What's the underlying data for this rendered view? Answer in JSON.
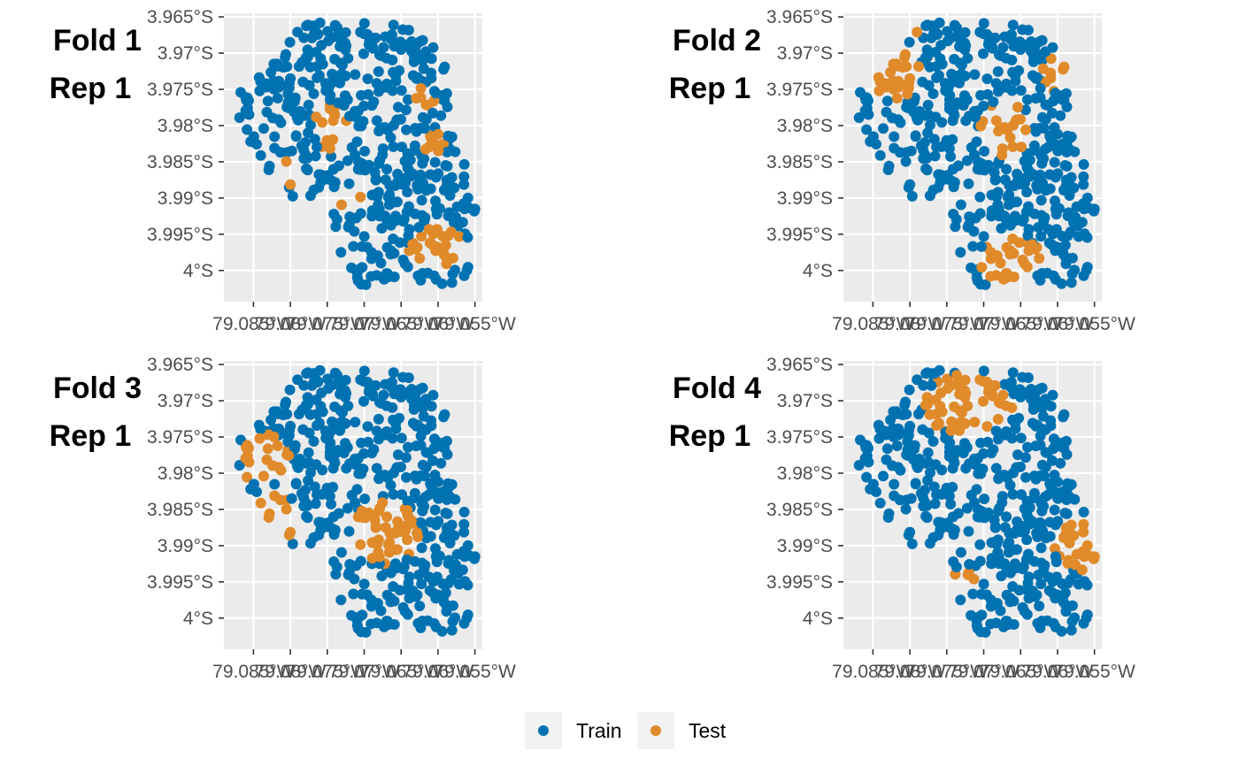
{
  "colors": {
    "panel_background": "#ebebeb",
    "grid": "#ffffff",
    "tick_text": "#4d4d4d",
    "legend_key_background": "#f2f2f2",
    "train": "#0072B2",
    "test": "#E08A2A"
  },
  "chart_data": [
    {
      "type": "scatter",
      "facet_label_line1": "Fold 1",
      "facet_label_line2": "Rep 1",
      "x_tick_labels": [
        "79.085°W",
        "79.08°W",
        "79.075°W",
        "79.07°W",
        "79.065°W",
        "79.06°W",
        "79.055°W"
      ],
      "y_tick_labels": [
        "3.965°S",
        "3.97°S",
        "3.975°S",
        "3.98°S",
        "3.985°S",
        "3.99°S",
        "3.995°S",
        "4°S"
      ],
      "x_ticks": [
        -79.085,
        -79.08,
        -79.075,
        -79.07,
        -79.065,
        -79.06,
        -79.055
      ],
      "y_ticks": [
        -3.965,
        -3.97,
        -3.975,
        -3.98,
        -3.985,
        -3.99,
        -3.995,
        -4.0
      ],
      "xlim": [
        -79.089,
        -79.054
      ],
      "ylim": [
        -4.0043,
        -3.9645
      ],
      "grid": true,
      "test_regions": [
        {
          "lon": -79.0745,
          "lat": -3.9802,
          "rx": 0.0022,
          "ry": 0.0033
        },
        {
          "lon": -79.0795,
          "lat": -3.9865,
          "rx": 0.0016,
          "ry": 0.0022
        },
        {
          "lon": -79.0725,
          "lat": -3.9905,
          "rx": 0.003,
          "ry": 0.002
        },
        {
          "lon": -79.062,
          "lat": -3.9765,
          "rx": 0.0016,
          "ry": 0.002
        },
        {
          "lon": -79.061,
          "lat": -3.9825,
          "rx": 0.002,
          "ry": 0.002
        },
        {
          "lon": -79.06,
          "lat": -3.997,
          "rx": 0.004,
          "ry": 0.003
        }
      ]
    },
    {
      "type": "scatter",
      "facet_label_line1": "Fold 2",
      "facet_label_line2": "Rep 1",
      "x_tick_labels": [
        "79.085°W",
        "79.08°W",
        "79.075°W",
        "79.07°W",
        "79.065°W",
        "79.06°W",
        "79.055°W"
      ],
      "y_tick_labels": [
        "3.965°S",
        "3.97°S",
        "3.975°S",
        "3.98°S",
        "3.985°S",
        "3.99°S",
        "3.995°S",
        "4°S"
      ],
      "x_ticks": [
        -79.085,
        -79.08,
        -79.075,
        -79.07,
        -79.065,
        -79.06,
        -79.055
      ],
      "y_ticks": [
        -3.965,
        -3.97,
        -3.975,
        -3.98,
        -3.985,
        -3.99,
        -3.995,
        -4.0
      ],
      "xlim": [
        -79.089,
        -79.054
      ],
      "ylim": [
        -4.0043,
        -3.9645
      ],
      "grid": true,
      "test_regions": [
        {
          "lon": -79.0825,
          "lat": -3.973,
          "rx": 0.004,
          "ry": 0.0035
        },
        {
          "lon": -79.0795,
          "lat": -3.967,
          "rx": 0.0008,
          "ry": 0.0015
        },
        {
          "lon": -79.067,
          "lat": -3.9805,
          "rx": 0.0035,
          "ry": 0.004
        },
        {
          "lon": -79.0605,
          "lat": -3.9725,
          "rx": 0.0015,
          "ry": 0.003
        },
        {
          "lon": -79.0665,
          "lat": -3.9985,
          "rx": 0.0045,
          "ry": 0.003
        }
      ]
    },
    {
      "type": "scatter",
      "facet_label_line1": "Fold 3",
      "facet_label_line2": "Rep 1",
      "x_tick_labels": [
        "79.085°W",
        "79.08°W",
        "79.075°W",
        "79.07°W",
        "79.065°W",
        "79.06°W",
        "79.055°W"
      ],
      "y_tick_labels": [
        "3.965°S",
        "3.97°S",
        "3.975°S",
        "3.98°S",
        "3.985°S",
        "3.99°S",
        "3.995°S",
        "4°S"
      ],
      "x_ticks": [
        -79.085,
        -79.08,
        -79.075,
        -79.07,
        -79.065,
        -79.06,
        -79.055
      ],
      "y_ticks": [
        -3.965,
        -3.97,
        -3.975,
        -3.98,
        -3.985,
        -3.99,
        -3.995,
        -4.0
      ],
      "xlim": [
        -79.089,
        -79.054
      ],
      "ylim": [
        -4.0043,
        -3.9645
      ],
      "grid": true,
      "test_regions": [
        {
          "lon": -79.0835,
          "lat": -3.978,
          "rx": 0.0035,
          "ry": 0.0035
        },
        {
          "lon": -79.082,
          "lat": -3.986,
          "rx": 0.003,
          "ry": 0.0035
        },
        {
          "lon": -79.067,
          "lat": -3.988,
          "rx": 0.0045,
          "ry": 0.0045
        }
      ]
    },
    {
      "type": "scatter",
      "facet_label_line1": "Fold 4",
      "facet_label_line2": "Rep 1",
      "x_tick_labels": [
        "79.085°W",
        "79.08°W",
        "79.075°W",
        "79.07°W",
        "79.065°W",
        "79.06°W",
        "79.055°W"
      ],
      "y_tick_labels": [
        "3.965°S",
        "3.97°S",
        "3.975°S",
        "3.98°S",
        "3.985°S",
        "3.99°S",
        "3.995°S",
        "4°S"
      ],
      "x_ticks": [
        -79.085,
        -79.08,
        -79.075,
        -79.07,
        -79.065,
        -79.06,
        -79.055
      ],
      "y_ticks": [
        -3.965,
        -3.97,
        -3.975,
        -3.98,
        -3.985,
        -3.99,
        -3.995,
        -4.0
      ],
      "xlim": [
        -79.089,
        -79.054
      ],
      "ylim": [
        -4.0043,
        -3.9645
      ],
      "grid": true,
      "test_regions": [
        {
          "lon": -79.072,
          "lat": -3.9705,
          "rx": 0.006,
          "ry": 0.0045
        },
        {
          "lon": -79.0565,
          "lat": -3.9895,
          "rx": 0.004,
          "ry": 0.004
        },
        {
          "lon": -79.0725,
          "lat": -3.9945,
          "rx": 0.0015,
          "ry": 0.0015
        }
      ]
    }
  ],
  "legend": {
    "position": "bottom",
    "items": [
      {
        "label": "Train",
        "color": "#0072B2"
      },
      {
        "label": "Test",
        "color": "#E08A2A"
      }
    ]
  }
}
